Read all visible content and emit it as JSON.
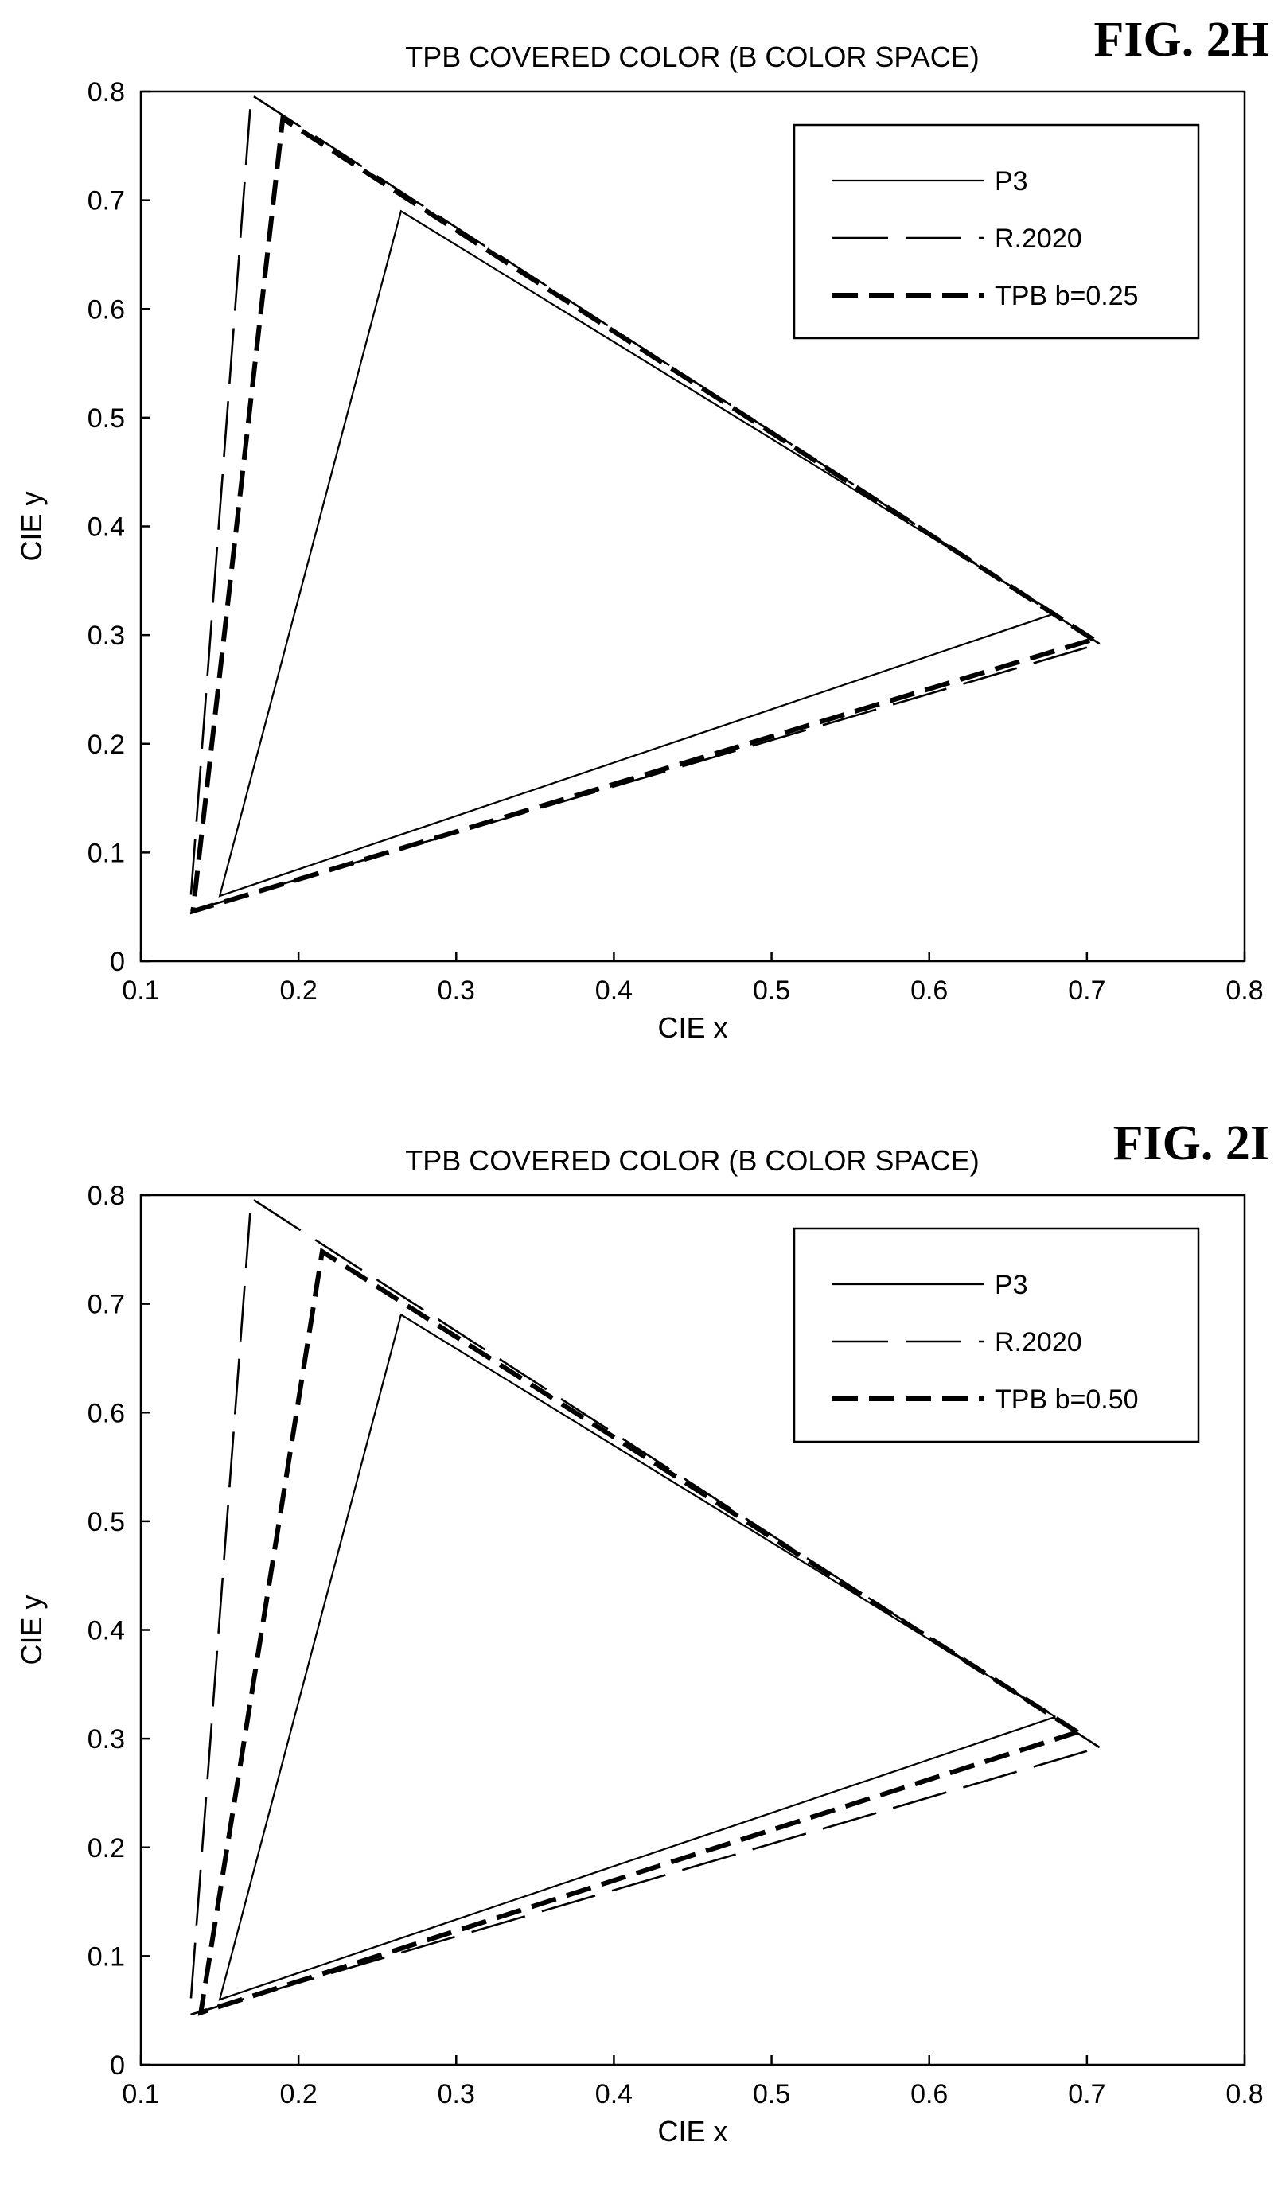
{
  "chart_data": [
    {
      "type": "line",
      "figure_label": "FIG. 2H",
      "title": "TPB COVERED COLOR (B COLOR SPACE)",
      "xlabel": "CIE x",
      "ylabel": "CIE y",
      "xlim": [
        0.1,
        0.8
      ],
      "ylim": [
        0,
        0.8
      ],
      "xticks": [
        "0.1",
        "0.2",
        "0.3",
        "0.4",
        "0.5",
        "0.6",
        "0.7",
        "0.8"
      ],
      "yticks": [
        "0",
        "0.1",
        "0.2",
        "0.3",
        "0.4",
        "0.5",
        "0.6",
        "0.7",
        "0.8"
      ],
      "grid": false,
      "legend_position": "top-right",
      "series": [
        {
          "name": "P3",
          "style": "solid",
          "x": [
            0.68,
            0.265,
            0.15,
            0.68
          ],
          "y": [
            0.32,
            0.69,
            0.06,
            0.32
          ]
        },
        {
          "name": "R.2020",
          "style": "long-dash",
          "x": [
            0.708,
            0.17,
            0.131,
            0.708
          ],
          "y": [
            0.292,
            0.797,
            0.046,
            0.292
          ]
        },
        {
          "name": "TPB b=0.25",
          "style": "dash-bold",
          "x": [
            0.704,
            0.19,
            0.133,
            0.704
          ],
          "y": [
            0.296,
            0.775,
            0.046,
            0.296
          ]
        }
      ]
    },
    {
      "type": "line",
      "figure_label": "FIG. 2I",
      "title": "TPB COVERED COLOR (B COLOR SPACE)",
      "xlabel": "CIE x",
      "ylabel": "CIE y",
      "xlim": [
        0.1,
        0.8
      ],
      "ylim": [
        0,
        0.8
      ],
      "xticks": [
        "0.1",
        "0.2",
        "0.3",
        "0.4",
        "0.5",
        "0.6",
        "0.7",
        "0.8"
      ],
      "yticks": [
        "0",
        "0.1",
        "0.2",
        "0.3",
        "0.4",
        "0.5",
        "0.6",
        "0.7",
        "0.8"
      ],
      "grid": false,
      "legend_position": "top-right",
      "series": [
        {
          "name": "P3",
          "style": "solid",
          "x": [
            0.68,
            0.265,
            0.15,
            0.68
          ],
          "y": [
            0.32,
            0.69,
            0.06,
            0.32
          ]
        },
        {
          "name": "R.2020",
          "style": "long-dash",
          "x": [
            0.708,
            0.17,
            0.131,
            0.708
          ],
          "y": [
            0.292,
            0.797,
            0.046,
            0.292
          ]
        },
        {
          "name": "TPB b=0.50",
          "style": "dash-bold",
          "x": [
            0.694,
            0.215,
            0.138,
            0.694
          ],
          "y": [
            0.306,
            0.748,
            0.048,
            0.306
          ]
        }
      ]
    }
  ]
}
